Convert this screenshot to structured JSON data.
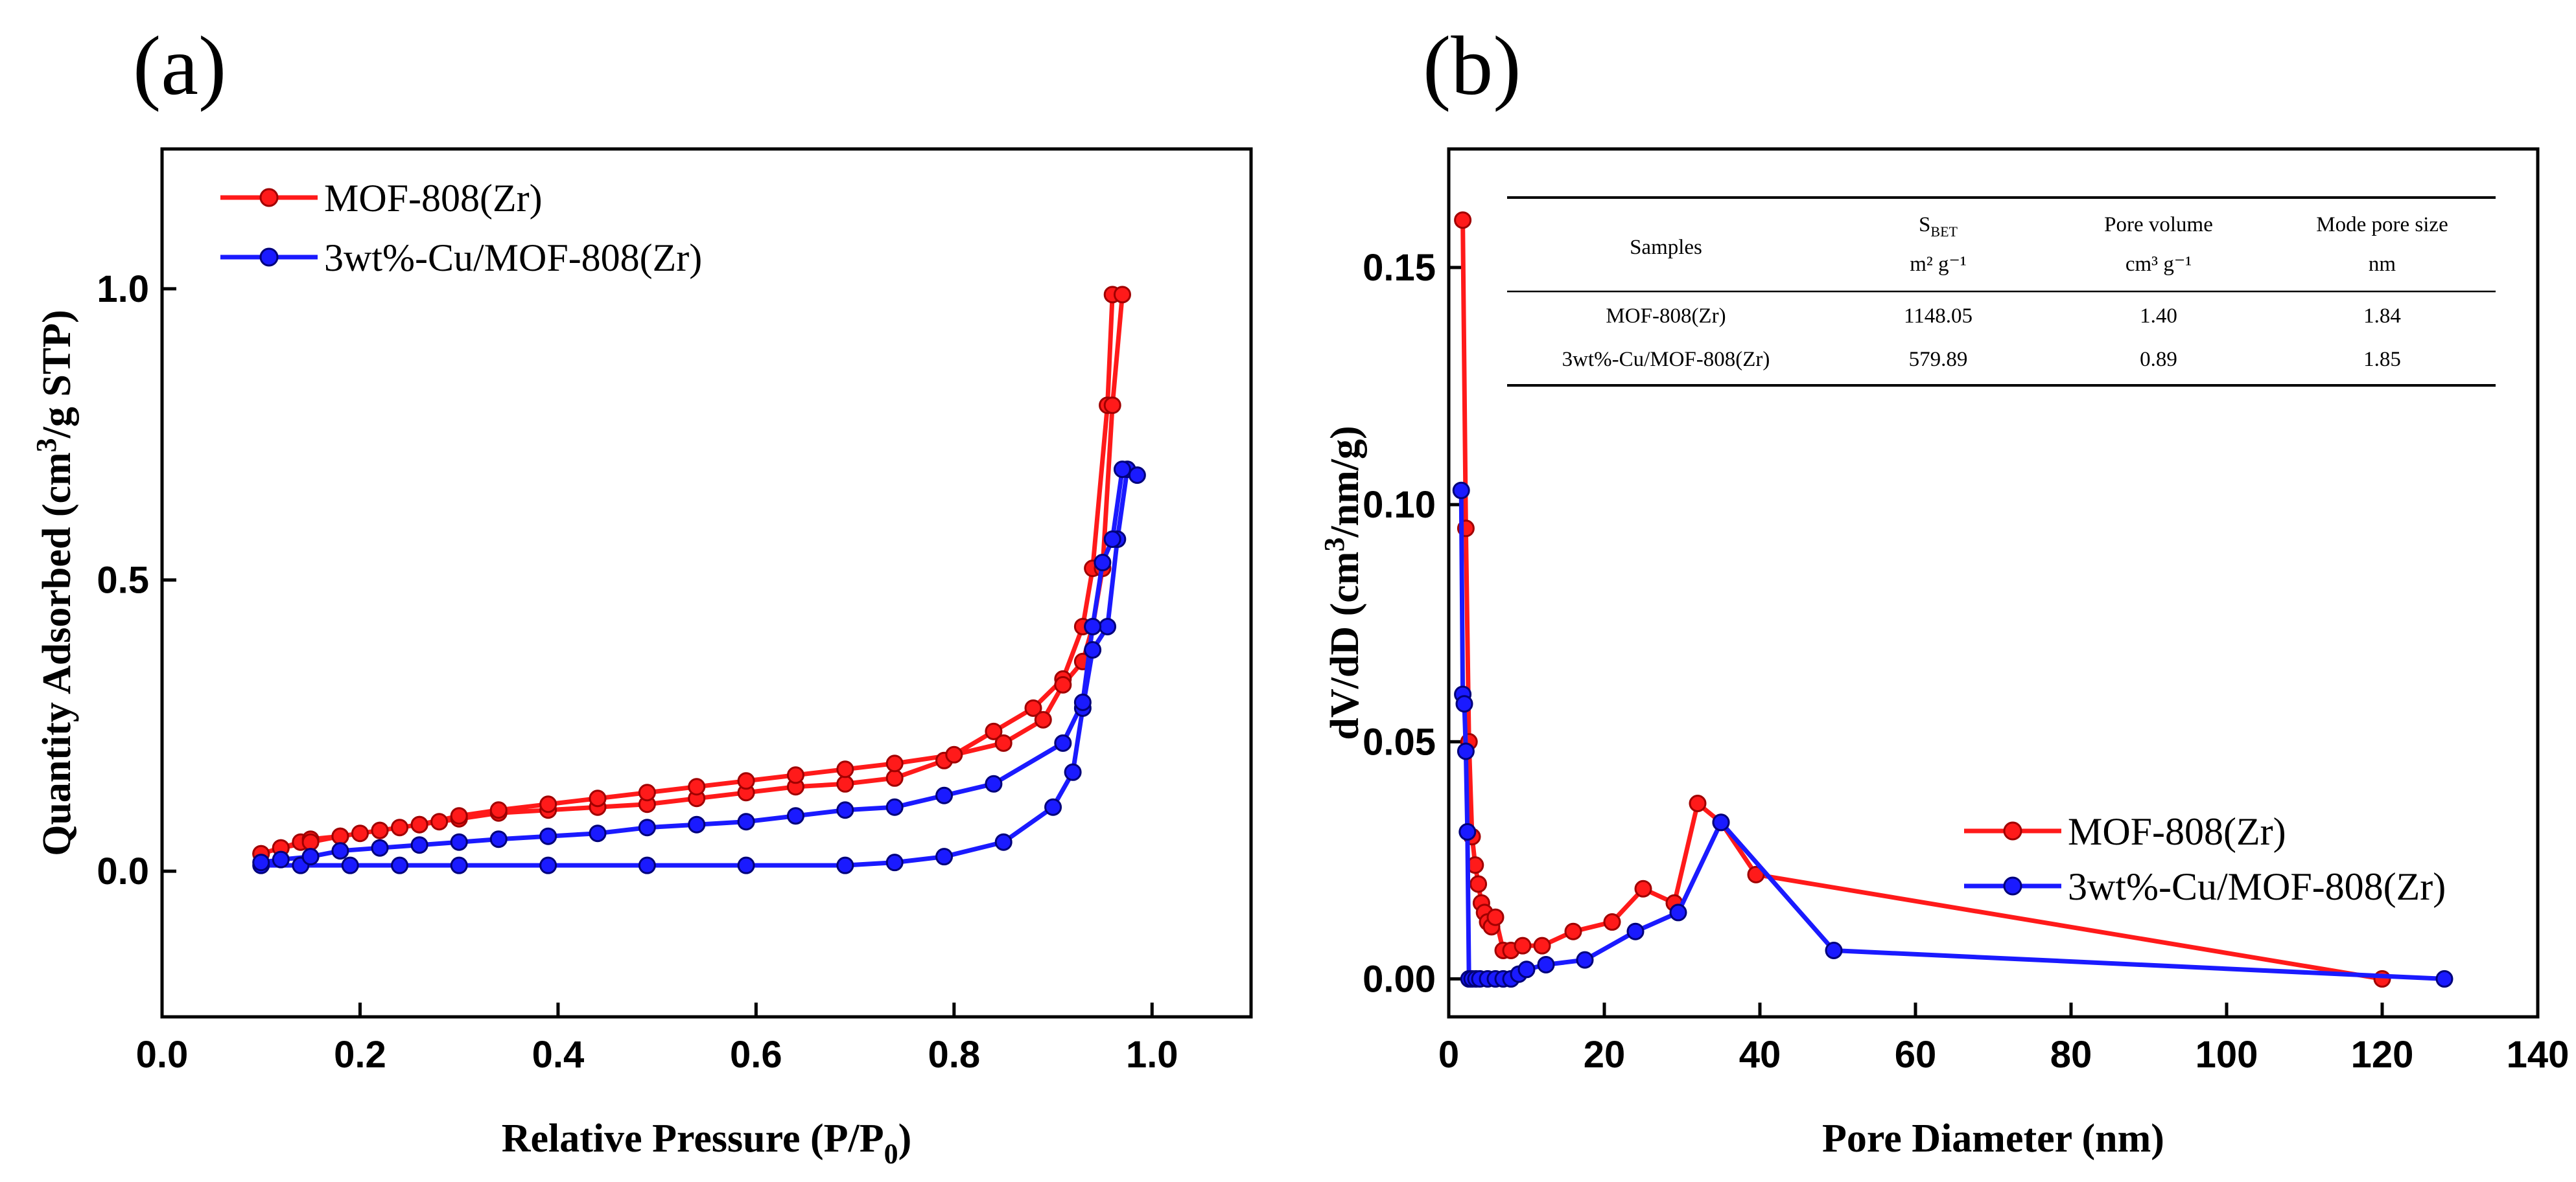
{
  "colors": {
    "mof": "#ff1a1a",
    "cu": "#1a1aff"
  },
  "chart_data": [
    {
      "panel": "(a)",
      "type": "line",
      "xlabel": "Relative Pressure (P/P",
      "xlabel_sub": "0",
      "xlabel_end": ")",
      "ylabel": "Quantity Adsorbed (cm",
      "ylabel_sup": "3",
      "ylabel_end": "/g STP)",
      "xlim": [
        0.0,
        1.1
      ],
      "ylim": [
        -0.25,
        1.24
      ],
      "xticks": [
        0.0,
        0.2,
        0.4,
        0.6,
        0.8,
        1.0
      ],
      "xtick_labels": [
        "0.0",
        "0.2",
        "0.4",
        "0.6",
        "0.8",
        "1.0"
      ],
      "yticks": [
        0.0,
        0.5,
        1.0
      ],
      "ytick_labels": [
        "0.0",
        "0.5",
        "1.0"
      ],
      "legend_position": "top-left",
      "series": [
        {
          "name": "MOF-808(Zr)",
          "color_key": "mof",
          "x": [
            0.1,
            0.12,
            0.14,
            0.15,
            0.18,
            0.2,
            0.22,
            0.24,
            0.26,
            0.28,
            0.3,
            0.34,
            0.39,
            0.44,
            0.49,
            0.54,
            0.59,
            0.64,
            0.69,
            0.74,
            0.79,
            0.84,
            0.88,
            0.91,
            0.93,
            0.94,
            0.955,
            0.96,
            0.97,
            0.96,
            0.95,
            0.94,
            0.93,
            0.91,
            0.89,
            0.85,
            0.8,
            0.74,
            0.69,
            0.64,
            0.59,
            0.54,
            0.49,
            0.44,
            0.39,
            0.34,
            0.3,
            0.26,
            0.22,
            0.18,
            0.15,
            0.12,
            0.1
          ],
          "y": [
            0.03,
            0.04,
            0.05,
            0.055,
            0.06,
            0.065,
            0.07,
            0.075,
            0.08,
            0.085,
            0.09,
            0.1,
            0.105,
            0.11,
            0.115,
            0.125,
            0.135,
            0.145,
            0.15,
            0.16,
            0.19,
            0.24,
            0.28,
            0.33,
            0.42,
            0.52,
            0.8,
            0.99,
            0.99,
            0.8,
            0.52,
            0.42,
            0.36,
            0.32,
            0.26,
            0.22,
            0.2,
            0.185,
            0.175,
            0.165,
            0.155,
            0.145,
            0.135,
            0.125,
            0.115,
            0.105,
            0.095,
            0.08,
            0.07,
            0.06,
            0.05,
            0.04,
            0.03
          ]
        },
        {
          "name": "3wt%-Cu/MOF-808(Zr)",
          "color_key": "cu",
          "x": [
            0.1,
            0.14,
            0.19,
            0.24,
            0.3,
            0.39,
            0.49,
            0.59,
            0.69,
            0.74,
            0.79,
            0.85,
            0.9,
            0.92,
            0.93,
            0.94,
            0.955,
            0.965,
            0.975,
            0.985,
            0.97,
            0.96,
            0.95,
            0.94,
            0.93,
            0.91,
            0.84,
            0.79,
            0.74,
            0.69,
            0.64,
            0.59,
            0.54,
            0.49,
            0.44,
            0.39,
            0.34,
            0.3,
            0.26,
            0.22,
            0.18,
            0.15,
            0.12,
            0.1
          ],
          "y": [
            0.01,
            0.01,
            0.01,
            0.01,
            0.01,
            0.01,
            0.01,
            0.01,
            0.01,
            0.015,
            0.025,
            0.05,
            0.11,
            0.17,
            0.28,
            0.38,
            0.42,
            0.57,
            0.69,
            0.68,
            0.69,
            0.57,
            0.53,
            0.42,
            0.29,
            0.22,
            0.15,
            0.13,
            0.11,
            0.105,
            0.095,
            0.085,
            0.08,
            0.075,
            0.065,
            0.06,
            0.055,
            0.05,
            0.045,
            0.04,
            0.035,
            0.025,
            0.02,
            0.015
          ]
        }
      ]
    },
    {
      "panel": "(b)",
      "type": "line",
      "xlabel": "Pore Diameter (nm)",
      "ylabel": "dV/dD (cm",
      "ylabel_sup": "3",
      "ylabel_end": "/nm/g)",
      "xlim": [
        0,
        140
      ],
      "ylim": [
        -0.008,
        0.175
      ],
      "xticks": [
        0,
        20,
        40,
        60,
        80,
        100,
        120,
        140
      ],
      "xtick_labels": [
        "0",
        "20",
        "40",
        "60",
        "80",
        "100",
        "120",
        "140"
      ],
      "yticks": [
        0.0,
        0.05,
        0.1,
        0.15
      ],
      "ytick_labels": [
        "0.00",
        "0.05",
        "0.10",
        "0.15"
      ],
      "legend_position": "bottom-right",
      "series": [
        {
          "name": "MOF-808(Zr)",
          "color_key": "mof",
          "x": [
            1.8,
            2.2,
            2.6,
            3.0,
            3.4,
            3.8,
            4.2,
            4.6,
            5.0,
            5.5,
            6.0,
            7.0,
            8.0,
            9.5,
            12,
            16,
            21,
            25,
            29,
            32,
            35,
            39.5,
            120
          ],
          "y": [
            0.16,
            0.095,
            0.05,
            0.03,
            0.024,
            0.02,
            0.016,
            0.014,
            0.012,
            0.011,
            0.013,
            0.006,
            0.006,
            0.007,
            0.007,
            0.01,
            0.012,
            0.019,
            0.016,
            0.037,
            0.033,
            0.022,
            0.0
          ]
        },
        {
          "name": "3wt%-Cu/MOF-808(Zr)",
          "color_key": "cu",
          "x": [
            1.6,
            1.8,
            2.0,
            2.2,
            2.4,
            2.6,
            3.0,
            3.5,
            4,
            5,
            6,
            7,
            8,
            9,
            10,
            12.5,
            17.5,
            24,
            29.5,
            35,
            49.5,
            128
          ],
          "y": [
            0.103,
            0.06,
            0.058,
            0.048,
            0.031,
            0.0,
            0.0,
            0.0,
            0.0,
            0.0,
            0.0,
            0.0,
            0.0,
            0.001,
            0.002,
            0.003,
            0.004,
            0.01,
            0.014,
            0.033,
            0.006,
            0.0
          ]
        }
      ]
    }
  ],
  "inset_table": {
    "headers": {
      "samples": "Samples",
      "sbet_symbol": "S",
      "sbet_sub": "BET",
      "sbet_unit": "m² g⁻¹",
      "pore_volume": "Pore volume",
      "pore_volume_unit": "cm³ g⁻¹",
      "mode_pore_size": "Mode pore size",
      "mode_pore_size_unit": "nm"
    },
    "rows": [
      {
        "sample": "MOF-808(Zr)",
        "sbet": "1148.05",
        "pore_volume": "1.40",
        "mode_pore_size": "1.84"
      },
      {
        "sample": "3wt%-Cu/MOF-808(Zr)",
        "sbet": "579.89",
        "pore_volume": "0.89",
        "mode_pore_size": "1.85"
      }
    ]
  }
}
